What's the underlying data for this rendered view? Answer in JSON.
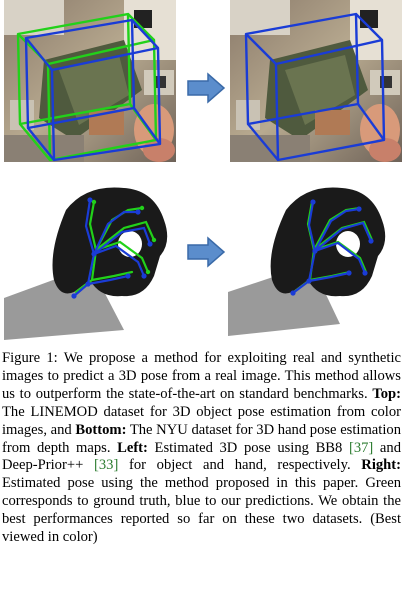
{
  "figure": {
    "panels": [
      {
        "row": "top",
        "side": "left",
        "subject": "object",
        "overlays": [
          "ground-truth box",
          "predicted box"
        ]
      },
      {
        "row": "top",
        "side": "right",
        "subject": "object",
        "overlays": [
          "predicted box"
        ]
      },
      {
        "row": "bottom",
        "side": "left",
        "subject": "hand-depth",
        "overlays": [
          "ground-truth skeleton",
          "predicted skeleton"
        ]
      },
      {
        "row": "bottom",
        "side": "right",
        "subject": "hand-depth",
        "overlays": [
          "ground-truth skeleton",
          "predicted skeleton"
        ]
      }
    ],
    "colors": {
      "ground_truth": "#22d11a",
      "prediction": "#1a3cd6",
      "arrow_fill": "#5b8dcc",
      "arrow_stroke": "#3a6aa8",
      "depth_hand": "#1a1a1a",
      "depth_shadow": "#9a9a9a"
    }
  },
  "caption": {
    "label": "Figure 1:",
    "s1": "We propose a method for exploiting real and synthetic images to predict a 3D pose from a real image. This method allows us to outperform the state-of-the-art on standard benchmarks.",
    "top_label": "Top:",
    "s2": "The LINEMOD dataset for 3D object pose estimation from color images, and",
    "bottom_label": "Bottom:",
    "s3": "The NYU dataset for 3D hand pose estimation from depth maps.",
    "left_label": "Left:",
    "s4a": "Estimated 3D pose using BB8",
    "ref_bb8": "[37]",
    "s4b": "and Deep-Prior++",
    "ref_dp": "[33]",
    "s4c": "for object and hand, respectively.",
    "right_label": "Right:",
    "s5": "Estimated pose using the method proposed in this paper. Green corresponds to ground truth, blue to our predictions. We obtain the best performances reported so far on these two datasets. (Best viewed in color)"
  }
}
